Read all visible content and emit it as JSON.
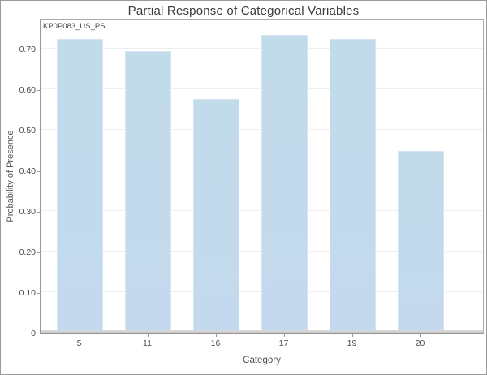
{
  "window": {
    "title": "Partial Response of Categorical Variables"
  },
  "chart_data": {
    "type": "bar",
    "title": "Partial Response of Categorical Variables",
    "series_label": "KP0P083_US_PS",
    "categories": [
      "5",
      "11",
      "16",
      "17",
      "19",
      "20"
    ],
    "values": [
      0.724,
      0.693,
      0.575,
      0.733,
      0.723,
      0.447
    ],
    "xlabel": "Category",
    "ylabel": "Probability of Presence",
    "ylim": [
      0,
      0.774
    ],
    "yticks": [
      0,
      0.1,
      0.2,
      0.3,
      0.4,
      0.5,
      0.6,
      0.7
    ],
    "ytick_labels": [
      "0",
      "0.10",
      "0.20",
      "0.30",
      "0.40",
      "0.50",
      "0.60",
      "0.70"
    ],
    "grid": "horizontal",
    "legend": "none",
    "colors": {
      "bar_fill_top": "#c2dbea",
      "bar_fill_bottom": "#c4d9ee",
      "bar_border": "#d6e5f1",
      "gridline": "#efefef",
      "axis_line": "#9a9a9a",
      "baseline_band": "#d5d5d5",
      "title_text": "#3a3a3a",
      "tick_text": "#4a4a4a"
    }
  }
}
